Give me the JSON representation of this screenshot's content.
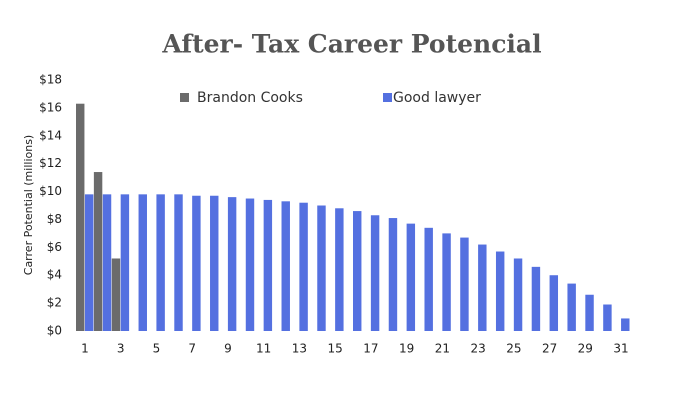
{
  "chart_data": {
    "type": "bar",
    "title": "After- Tax Career Potencial",
    "y_label": "Carrer Potential (millions)",
    "categories": [
      "1",
      null,
      "3",
      null,
      "5",
      null,
      "7",
      null,
      "9",
      null,
      "11",
      null,
      "13",
      null,
      "15",
      null,
      "17",
      null,
      "19",
      null,
      "21",
      null,
      "23",
      null,
      "25",
      null,
      "27",
      null,
      "29",
      null,
      "31"
    ],
    "series": [
      {
        "name": "Brandon Cooks",
        "color": "#6b6b6b",
        "values": [
          16.3,
          11.4,
          5.2,
          null,
          null,
          null,
          null,
          null,
          null,
          null,
          null,
          null,
          null,
          null,
          null,
          null,
          null,
          null,
          null,
          null,
          null,
          null,
          null,
          null,
          null,
          null,
          null,
          null,
          null,
          null,
          null
        ]
      },
      {
        "name": "Good lawyer",
        "color": "#5470e0",
        "values": [
          9.8,
          9.8,
          9.8,
          9.8,
          9.8,
          9.8,
          9.7,
          9.7,
          9.6,
          9.5,
          9.4,
          9.3,
          9.2,
          9.0,
          8.8,
          8.6,
          8.3,
          8.1,
          7.7,
          7.4,
          7.0,
          6.7,
          6.2,
          5.7,
          5.2,
          4.6,
          4.0,
          3.4,
          2.6,
          1.9,
          0.9
        ]
      }
    ],
    "ylim": [
      0,
      18
    ],
    "yticks": [
      {
        "value": 0,
        "label": "$0"
      },
      {
        "value": 2,
        "label": "$2"
      },
      {
        "value": 4,
        "label": "$4"
      },
      {
        "value": 6,
        "label": "$6"
      },
      {
        "value": 8,
        "label": "$8"
      },
      {
        "value": 10,
        "label": "$10"
      },
      {
        "value": 12,
        "label": "$12"
      },
      {
        "value": 14,
        "label": "$14"
      },
      {
        "value": 16,
        "label": "$16"
      },
      {
        "value": 18,
        "label": "$18"
      }
    ],
    "grid": false
  }
}
